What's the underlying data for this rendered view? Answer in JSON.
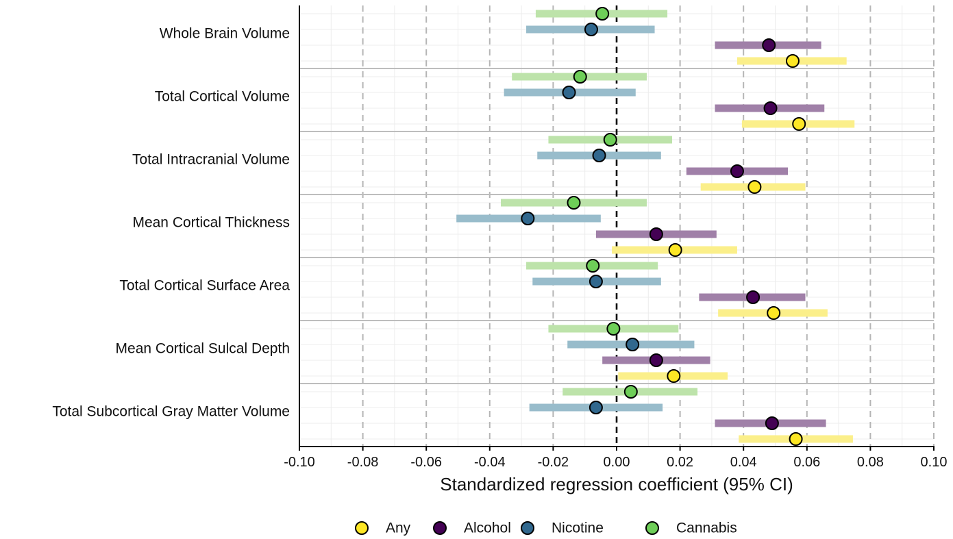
{
  "chart_data": {
    "type": "forest",
    "title": "",
    "xlabel": "Standardized regression coefficient (95% CI)",
    "ylabel": "",
    "xlim": [
      -0.1,
      0.1
    ],
    "xticks": [
      -0.1,
      -0.08,
      -0.06,
      -0.04,
      -0.02,
      0.0,
      0.02,
      0.04,
      0.06,
      0.08,
      0.1
    ],
    "xtick_labels": [
      "-0.10",
      "-0.08",
      "-0.06",
      "-0.04",
      "-0.02",
      "0.00",
      "0.02",
      "0.04",
      "0.06",
      "0.08",
      "0.10"
    ],
    "grid": true,
    "reference_line": 0,
    "legend_position": "bottom",
    "categories": [
      "Whole Brain Volume",
      "Total Cortical Volume",
      "Total Intracranial Volume",
      "Mean Cortical Thickness",
      "Total Cortical Surface Area",
      "Mean Cortical Sulcal Depth",
      "Total Subcortical Gray Matter Volume"
    ],
    "series": [
      {
        "name": "Any",
        "color": "#fde725",
        "ci_color": "#fbef8a",
        "estimates": [
          0.0555,
          0.0575,
          0.0435,
          0.0185,
          0.0495,
          0.018,
          0.0565
        ],
        "lower": [
          0.038,
          0.0395,
          0.0265,
          -0.0015,
          0.032,
          0.0005,
          0.0385
        ],
        "upper": [
          0.0725,
          0.075,
          0.0595,
          0.038,
          0.0665,
          0.035,
          0.0745
        ]
      },
      {
        "name": "Alcohol",
        "color": "#440154",
        "ci_color": "#a080a8",
        "estimates": [
          0.048,
          0.0485,
          0.038,
          0.0125,
          0.043,
          0.0125,
          0.049
        ],
        "lower": [
          0.031,
          0.031,
          0.022,
          -0.0065,
          0.026,
          -0.0045,
          0.031
        ],
        "upper": [
          0.0645,
          0.0655,
          0.054,
          0.0315,
          0.0595,
          0.0295,
          0.066
        ]
      },
      {
        "name": "Nicotine",
        "color": "#31688e",
        "ci_color": "#98bccb",
        "estimates": [
          -0.008,
          -0.015,
          -0.0055,
          -0.028,
          -0.0065,
          0.005,
          -0.0065
        ],
        "lower": [
          -0.0285,
          -0.0355,
          -0.025,
          -0.0505,
          -0.0265,
          -0.0155,
          -0.0275
        ],
        "upper": [
          0.012,
          0.006,
          0.014,
          -0.005,
          0.014,
          0.0245,
          0.0145
        ]
      },
      {
        "name": "Cannabis",
        "color": "#6ece58",
        "ci_color": "#bde3aa",
        "estimates": [
          -0.0045,
          -0.0115,
          -0.002,
          -0.0135,
          -0.0075,
          -0.001,
          0.0045
        ],
        "lower": [
          -0.0255,
          -0.033,
          -0.0215,
          -0.0365,
          -0.0285,
          -0.0215,
          -0.017
        ],
        "upper": [
          0.016,
          0.0095,
          0.0175,
          0.0095,
          0.013,
          0.0195,
          0.0255
        ]
      }
    ]
  }
}
